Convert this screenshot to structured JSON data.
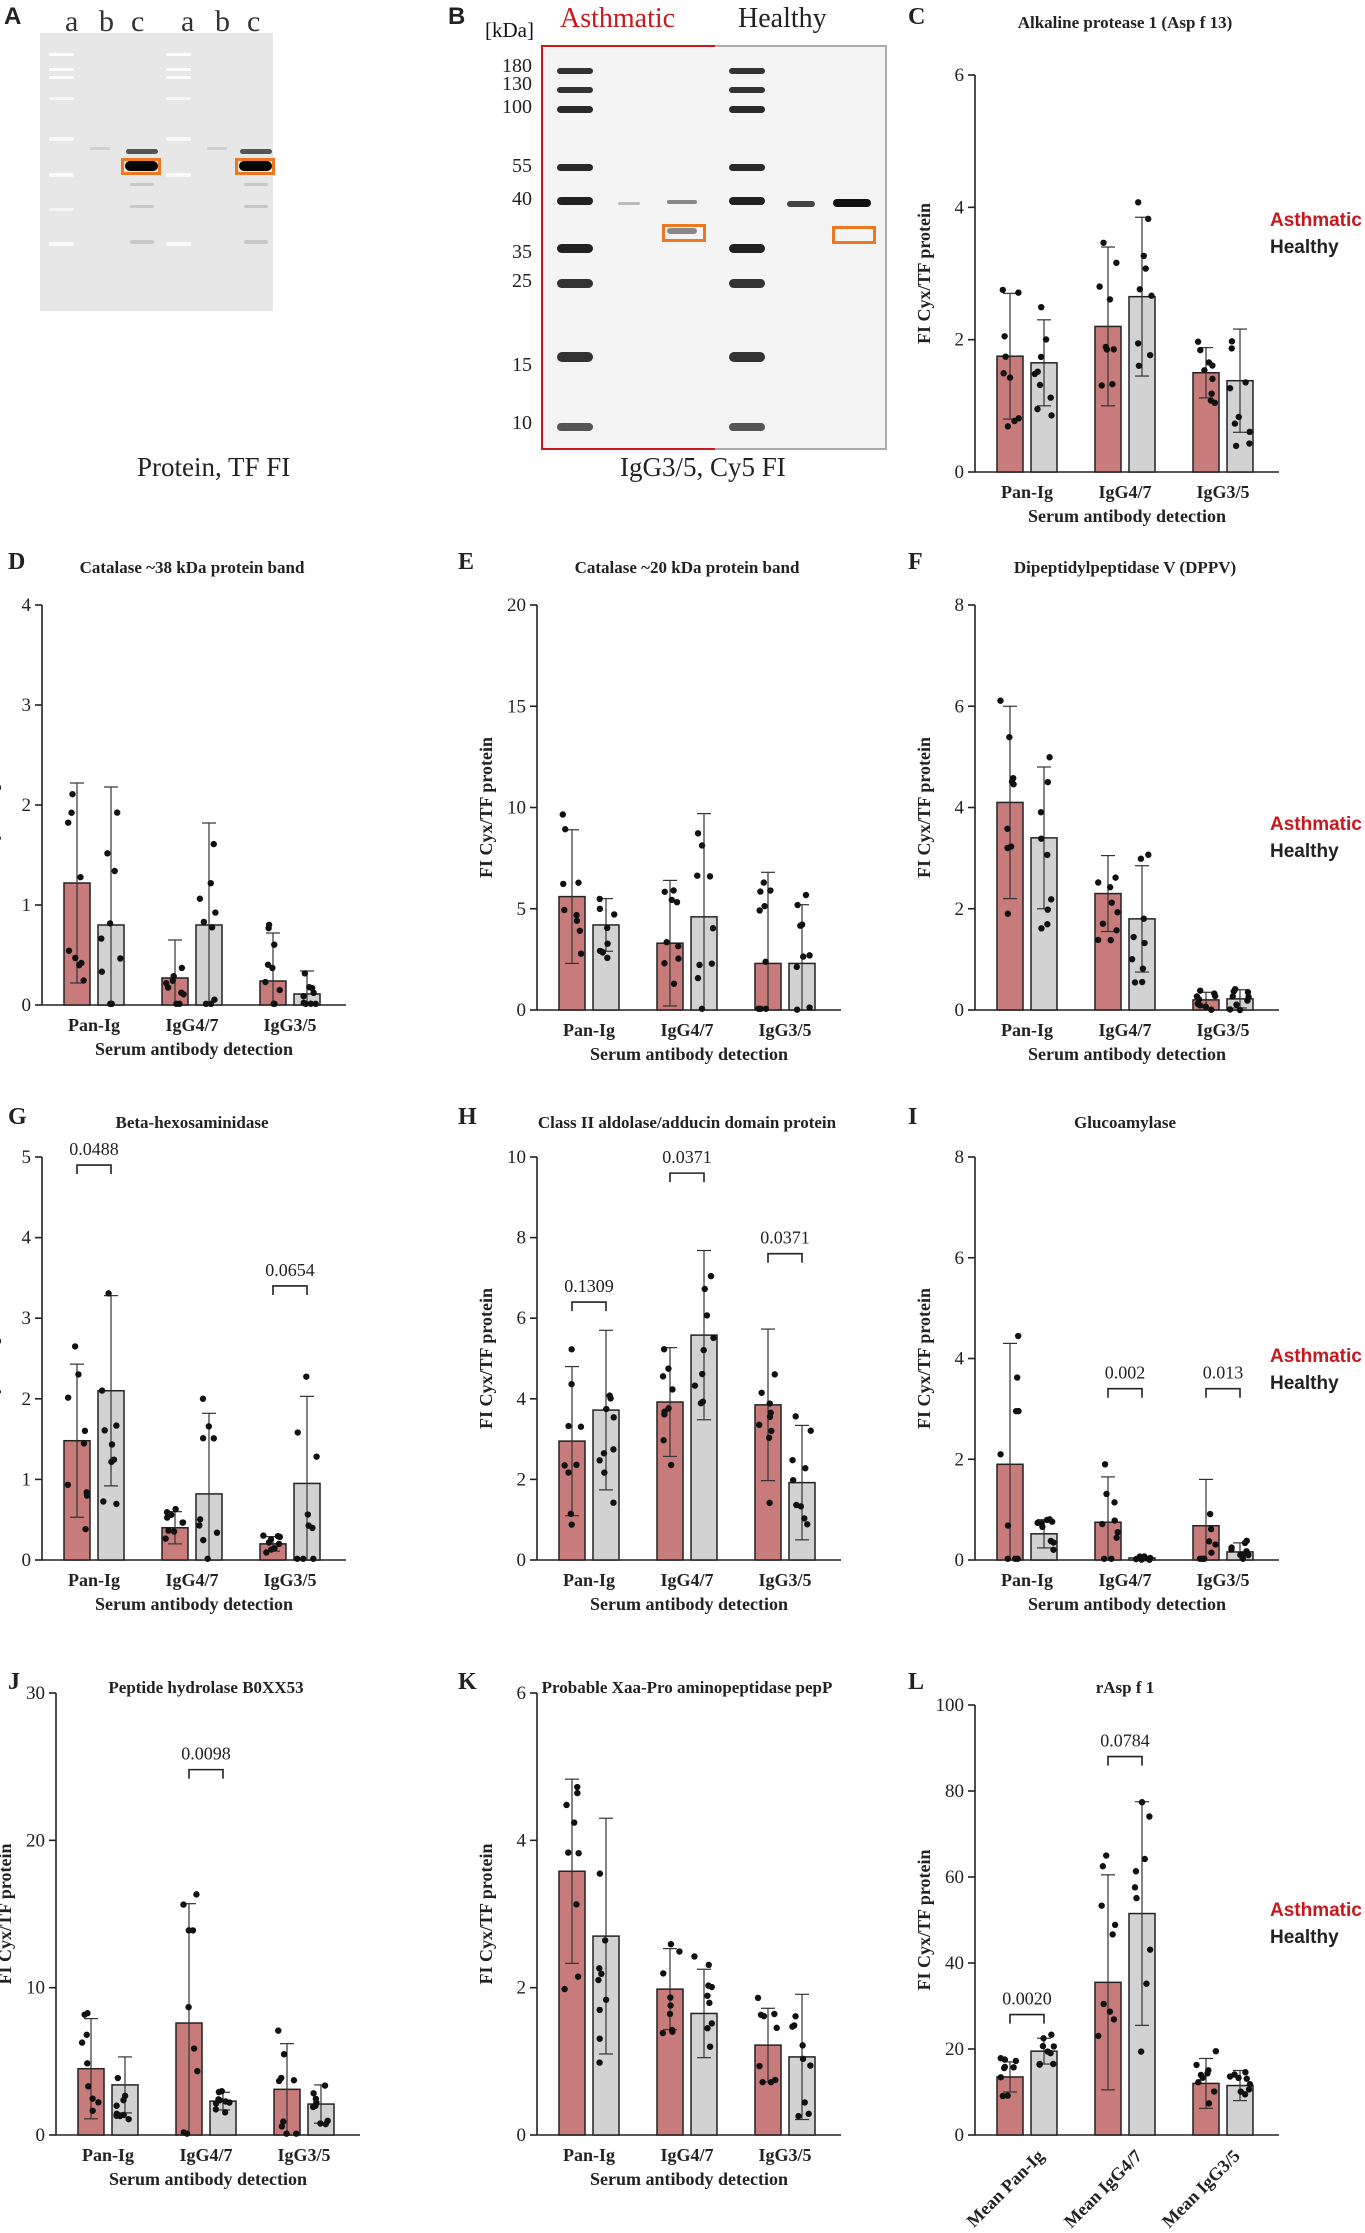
{
  "colors": {
    "asthmatic": "#c87b7b",
    "healthy": "#d2d2d2",
    "text_asthmatic": "#c8181e",
    "orange": "#ee7722"
  },
  "panel_A": {
    "letter": "A",
    "lanes": [
      "a",
      "b",
      "c",
      "a",
      "b",
      "c"
    ],
    "caption": "Protein, TF FI"
  },
  "panel_B": {
    "letter": "B",
    "unit": "[kDa]",
    "asthmatic": "Asthmatic",
    "healthy": "Healthy",
    "markers": [
      "180",
      "130",
      "100",
      "55",
      "40",
      "35",
      "25",
      "15",
      "10"
    ],
    "caption": "IgG3/5, Cy5 FI"
  },
  "legend": {
    "asthmatic": "Asthmatic",
    "healthy": "Healthy"
  },
  "chart_data": [
    {
      "type": "bar",
      "letter": "C",
      "title": "Alkaline protease 1 (Asp f 13)",
      "ylabel": "FI Cyx/TF protein",
      "xlabel": "Serum antibody detection",
      "categories": [
        "Pan-Ig",
        "IgG4/7",
        "IgG3/5"
      ],
      "ylim": [
        0,
        6
      ],
      "yticks": [
        "0",
        "2",
        "4",
        "6"
      ],
      "series": [
        {
          "name": "Asthmatic",
          "values": [
            1.75,
            2.2,
            1.5
          ],
          "sd": [
            0.95,
            1.2,
            0.38
          ]
        },
        {
          "name": "Healthy",
          "values": [
            1.65,
            2.65,
            1.38
          ],
          "sd": [
            0.65,
            1.2,
            0.78
          ]
        }
      ],
      "legend": true
    },
    {
      "type": "bar",
      "letter": "D",
      "title": "Catalase ~38 kDa protein band",
      "ylabel": "FI Cyx/TF protein",
      "xlabel": "Serum antibody detection",
      "categories": [
        "Pan-Ig",
        "IgG4/7",
        "IgG3/5"
      ],
      "ylim": [
        0,
        4
      ],
      "yticks": [
        "0",
        "1",
        "2",
        "3",
        "4"
      ],
      "series": [
        {
          "name": "Asthmatic",
          "values": [
            1.22,
            0.27,
            0.24
          ],
          "sd": [
            1.0,
            0.38,
            0.48
          ]
        },
        {
          "name": "Healthy",
          "values": [
            0.8,
            0.8,
            0.11
          ],
          "sd": [
            1.38,
            1.02,
            0.23
          ]
        }
      ]
    },
    {
      "type": "bar",
      "letter": "E",
      "title": "Catalase ~20 kDa protein band",
      "ylabel": "FI Cyx/TF protein",
      "xlabel": "Serum antibody detection",
      "categories": [
        "Pan-Ig",
        "IgG4/7",
        "IgG3/5"
      ],
      "ylim": [
        0,
        20
      ],
      "yticks": [
        "0",
        "5",
        "10",
        "15",
        "20"
      ],
      "series": [
        {
          "name": "Asthmatic",
          "values": [
            5.6,
            3.3,
            2.3
          ],
          "sd": [
            3.3,
            3.1,
            4.5
          ]
        },
        {
          "name": "Healthy",
          "values": [
            4.2,
            4.6,
            2.3
          ],
          "sd": [
            1.3,
            5.1,
            2.9
          ]
        }
      ]
    },
    {
      "type": "bar",
      "letter": "F",
      "title": "Dipeptidylpeptidase V (DPPV)",
      "ylabel": "FI Cyx/TF protein",
      "xlabel": "Serum antibody detection",
      "categories": [
        "Pan-Ig",
        "IgG4/7",
        "IgG3/5"
      ],
      "ylim": [
        0,
        8
      ],
      "yticks": [
        "0",
        "2",
        "4",
        "6",
        "8"
      ],
      "series": [
        {
          "name": "Asthmatic",
          "values": [
            4.1,
            2.3,
            0.2
          ],
          "sd": [
            1.9,
            0.75,
            0.15
          ]
        },
        {
          "name": "Healthy",
          "values": [
            3.4,
            1.8,
            0.22
          ],
          "sd": [
            1.4,
            1.05,
            0.18
          ]
        }
      ],
      "legend": true
    },
    {
      "type": "bar",
      "letter": "G",
      "title": "Beta-hexosaminidase",
      "ylabel": "FI Cyx/TF protein",
      "xlabel": "Serum antibody detection",
      "categories": [
        "Pan-Ig",
        "IgG4/7",
        "IgG3/5"
      ],
      "ylim": [
        0,
        5
      ],
      "yticks": [
        "0",
        "1",
        "2",
        "3",
        "4",
        "5"
      ],
      "series": [
        {
          "name": "Asthmatic",
          "values": [
            1.48,
            0.4,
            0.2
          ],
          "sd": [
            0.95,
            0.2,
            0.09
          ]
        },
        {
          "name": "Healthy",
          "values": [
            2.1,
            0.82,
            0.95
          ],
          "sd": [
            1.18,
            1.0,
            1.08
          ]
        }
      ],
      "pvalues": [
        {
          "cat": 0,
          "label": "0.0488",
          "y": 4.9
        },
        {
          "cat": 2,
          "label": "0.0654",
          "y": 3.4
        }
      ]
    },
    {
      "type": "bar",
      "letter": "H",
      "title": "Class II aldolase/adducin domain protein",
      "ylabel": "FI Cyx/TF protein",
      "xlabel": "Serum antibody detection",
      "categories": [
        "Pan-Ig",
        "IgG4/7",
        "IgG3/5"
      ],
      "ylim": [
        0,
        10
      ],
      "yticks": [
        "0",
        "2",
        "4",
        "6",
        "8",
        "10"
      ],
      "series": [
        {
          "name": "Asthmatic",
          "values": [
            2.95,
            3.92,
            3.85
          ],
          "sd": [
            1.85,
            1.35,
            1.88
          ]
        },
        {
          "name": "Healthy",
          "values": [
            3.72,
            5.58,
            1.92
          ],
          "sd": [
            1.98,
            2.1,
            1.42
          ]
        }
      ],
      "pvalues": [
        {
          "cat": 0,
          "label": "0.1309",
          "y": 6.4
        },
        {
          "cat": 1,
          "label": "0.0371",
          "y": 9.6
        },
        {
          "cat": 2,
          "label": "0.0371",
          "y": 7.6
        }
      ]
    },
    {
      "type": "bar",
      "letter": "I",
      "title": "Glucoamylase",
      "ylabel": "FI Cyx/TF protein",
      "xlabel": "Serum antibody detection",
      "categories": [
        "Pan-Ig",
        "IgG4/7",
        "IgG3/5"
      ],
      "ylim": [
        0,
        8
      ],
      "yticks": [
        "0",
        "2",
        "4",
        "6",
        "8"
      ],
      "series": [
        {
          "name": "Asthmatic",
          "values": [
            1.9,
            0.75,
            0.68
          ],
          "sd": [
            2.4,
            0.9,
            0.92
          ]
        },
        {
          "name": "Healthy",
          "values": [
            0.52,
            0.04,
            0.16
          ],
          "sd": [
            0.28,
            0.03,
            0.18
          ]
        }
      ],
      "pvalues": [
        {
          "cat": 1,
          "label": "0.002",
          "y": 3.4
        },
        {
          "cat": 2,
          "label": "0.013",
          "y": 3.4
        }
      ],
      "legend": true
    },
    {
      "type": "bar",
      "letter": "J",
      "title": "Peptide hydrolase B0XX53",
      "ylabel": "FI Cyx/TF protein",
      "xlabel": "Serum antibody detection",
      "categories": [
        "Pan-Ig",
        "IgG4/7",
        "IgG3/5"
      ],
      "ylim": [
        0,
        30
      ],
      "yticks": [
        "0",
        "10",
        "20",
        "30"
      ],
      "series": [
        {
          "name": "Asthmatic",
          "values": [
            4.5,
            7.6,
            3.1
          ],
          "sd": [
            3.4,
            8.1,
            3.1
          ]
        },
        {
          "name": "Healthy",
          "values": [
            3.4,
            2.3,
            2.1
          ],
          "sd": [
            1.9,
            0.6,
            1.3
          ]
        }
      ],
      "pvalues": [
        {
          "cat": 1,
          "label": "0.0098",
          "y": 24.8
        }
      ]
    },
    {
      "type": "bar",
      "letter": "K",
      "title": "Probable Xaa-Pro aminopeptidase pepP",
      "ylabel": "FI Cyx/TF protein",
      "xlabel": "Serum antibody detection",
      "categories": [
        "Pan-Ig",
        "IgG4/7",
        "IgG3/5"
      ],
      "ylim": [
        0,
        6
      ],
      "yticks": [
        "0",
        "2",
        "4",
        "6"
      ],
      "series": [
        {
          "name": "Asthmatic",
          "values": [
            3.58,
            1.98,
            1.22
          ],
          "sd": [
            1.25,
            0.55,
            0.5
          ]
        },
        {
          "name": "Healthy",
          "values": [
            2.7,
            1.65,
            1.06
          ],
          "sd": [
            1.6,
            0.6,
            0.85
          ]
        }
      ]
    },
    {
      "type": "bar",
      "letter": "L",
      "title": "rAsp f 1",
      "ylabel": "FI Cyx/TF protein",
      "xlabel": "",
      "categories": [
        "Mean Pan-Ig",
        "Mean IgG4/7",
        "Mean IgG3/5"
      ],
      "ylim": [
        0,
        100
      ],
      "yticks": [
        "0",
        "20",
        "40",
        "60",
        "80",
        "100"
      ],
      "series": [
        {
          "name": "Asthmatic",
          "values": [
            13.5,
            35.5,
            12.0
          ],
          "sd": [
            3.5,
            25.0,
            5.8
          ]
        },
        {
          "name": "Healthy",
          "values": [
            19.5,
            51.5,
            11.5
          ],
          "sd": [
            3.0,
            26.0,
            3.5
          ]
        }
      ],
      "pvalues": [
        {
          "cat": 0,
          "label": "0.0020",
          "y": 28.0
        },
        {
          "cat": 1,
          "label": "0.0784",
          "y": 88.0
        }
      ],
      "legend": true
    }
  ]
}
